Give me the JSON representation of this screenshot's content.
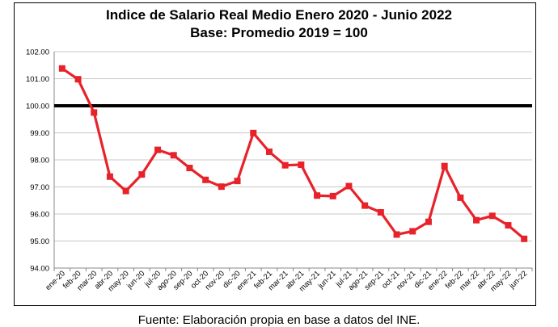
{
  "chart_data": {
    "type": "line",
    "title": "Indice de Salario Real Medio Enero 2020 - Junio 2022",
    "subtitle": "Base: Promedio 2019 = 100",
    "categories": [
      "ene-20",
      "feb-20",
      "mar-20",
      "abr-20",
      "may-20",
      "jun-20",
      "jul-20",
      "ago-20",
      "sep-20",
      "oct-20",
      "nov-20",
      "dic-20",
      "ene-21",
      "feb-21",
      "mar-21",
      "abr-21",
      "may-21",
      "jun-21",
      "jul-21",
      "ago-21",
      "sep-21",
      "oct-21",
      "nov-21",
      "dic-21",
      "ene-22",
      "feb-22",
      "mar-22",
      "abr-22",
      "may-22",
      "jun-22"
    ],
    "series": [
      {
        "values": [
          101.38,
          100.98,
          99.75,
          97.38,
          96.85,
          97.46,
          98.37,
          98.17,
          97.7,
          97.26,
          97.01,
          97.22,
          98.99,
          98.3,
          97.8,
          97.82,
          96.68,
          96.66,
          97.03,
          96.31,
          96.06,
          95.24,
          95.36,
          95.71,
          97.77,
          96.6,
          95.77,
          95.93,
          95.58,
          95.08
        ],
        "color": "#e8222a"
      }
    ],
    "baseline": {
      "value": 100,
      "color": "#000000"
    },
    "yticks": [
      "94.00",
      "95.00",
      "96.00",
      "97.00",
      "98.00",
      "99.00",
      "100.00",
      "101.00",
      "102.00"
    ],
    "ylim": [
      94,
      102
    ],
    "grid": true,
    "xlabel": "",
    "ylabel": ""
  },
  "source_text": "Fuente: Elaboración propia en base a datos del INE."
}
